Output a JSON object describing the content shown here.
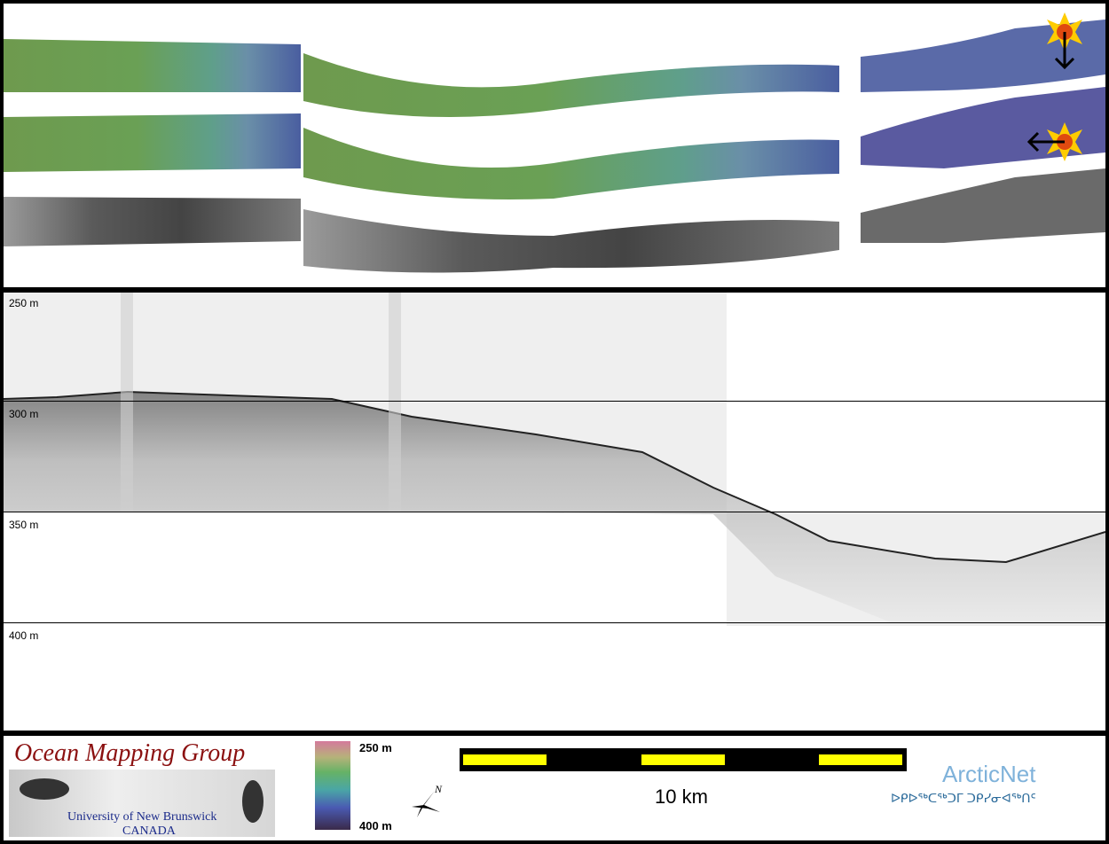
{
  "profile": {
    "depth_labels": [
      "250 m",
      "300 m",
      "350 m",
      "400 m"
    ]
  },
  "logo": {
    "title": "Ocean Mapping Group",
    "university": "University of New Brunswick",
    "country": "CANADA"
  },
  "colorbar": {
    "top_label": "250 m",
    "bottom_label": "400 m"
  },
  "north_arrow": {
    "label": "N"
  },
  "scale_bar": {
    "label": "10 km",
    "segment_color": "#ffff00"
  },
  "partner": {
    "name": "ArcticNet",
    "subtitle": "ᐅᑭᐅᖅᑕᖅᑐᒥ ᑐᑭᓯᓂᐊᖅᑎᑦ"
  },
  "colors": {
    "frame": "#000000",
    "logo_title": "#8b1010",
    "logo_text": "#1a2a8a",
    "arcticnet": "#7fb2da"
  }
}
